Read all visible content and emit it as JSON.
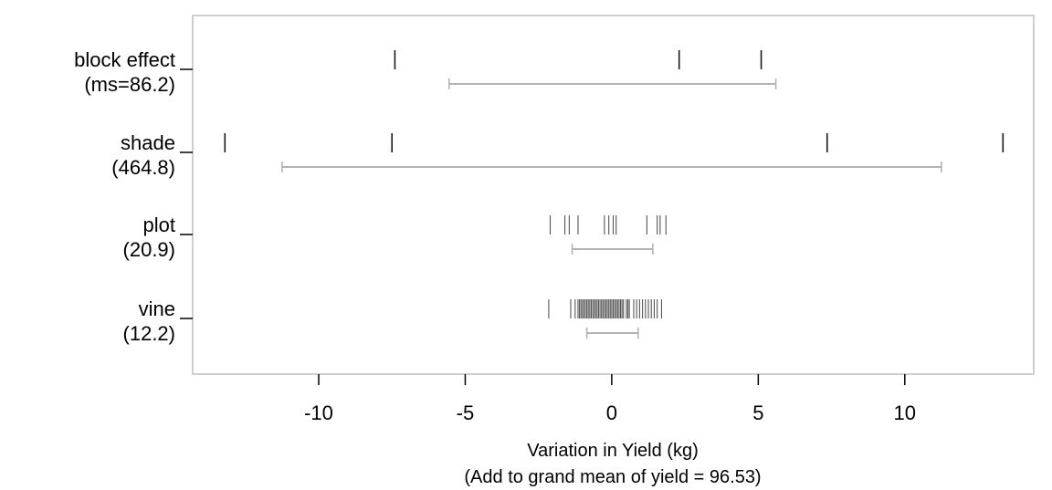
{
  "chart_data": {
    "type": "strip",
    "xlabel": "Variation in Yield (kg)",
    "xlabel2": "(Add to grand mean of yield = 96.53)",
    "xlim": [
      -14.3,
      14.4
    ],
    "xticks": [
      -10,
      -5,
      0,
      5,
      10
    ],
    "xtick_labels": [
      "-10",
      "-5",
      "0",
      "5",
      "10"
    ],
    "rows": [
      {
        "label1": "block effect",
        "label2": "(ms=86.2)",
        "values": [
          -7.4,
          2.3,
          5.1
        ],
        "interval": [
          -5.55,
          5.6
        ]
      },
      {
        "label1": "shade",
        "label2": "(464.8)",
        "values": [
          -13.2,
          -7.5,
          7.35,
          13.35
        ],
        "interval": [
          -11.25,
          11.25
        ]
      },
      {
        "label1": "plot",
        "label2": "(20.9)",
        "values": [
          -2.1,
          -1.6,
          -1.45,
          -1.15,
          -0.25,
          -0.1,
          0.05,
          0.15,
          1.2,
          1.55,
          1.65,
          1.85
        ],
        "interval": [
          -1.35,
          1.4
        ]
      },
      {
        "label1": "vine",
        "label2": "(12.2)",
        "values": [
          -2.15,
          -1.4,
          -1.25,
          -1.15,
          -1.1,
          -1.05,
          -1.0,
          -0.95,
          -0.9,
          -0.85,
          -0.8,
          -0.75,
          -0.7,
          -0.65,
          -0.6,
          -0.55,
          -0.5,
          -0.45,
          -0.4,
          -0.35,
          -0.3,
          -0.25,
          -0.2,
          -0.15,
          -0.1,
          -0.05,
          0.0,
          0.05,
          0.1,
          0.15,
          0.2,
          0.25,
          0.3,
          0.35,
          0.4,
          0.5,
          0.55,
          0.6,
          0.75,
          0.85,
          0.95,
          1.05,
          1.15,
          1.25,
          1.35,
          1.45,
          1.55,
          1.7
        ],
        "interval": [
          -0.85,
          0.9
        ]
      }
    ],
    "colors": {
      "frame": "#bfbfbf",
      "interval": "#b3b3b3",
      "mark_sparse": "#1a1a1a",
      "mark_dense": "#555555",
      "text": "#000000"
    }
  }
}
